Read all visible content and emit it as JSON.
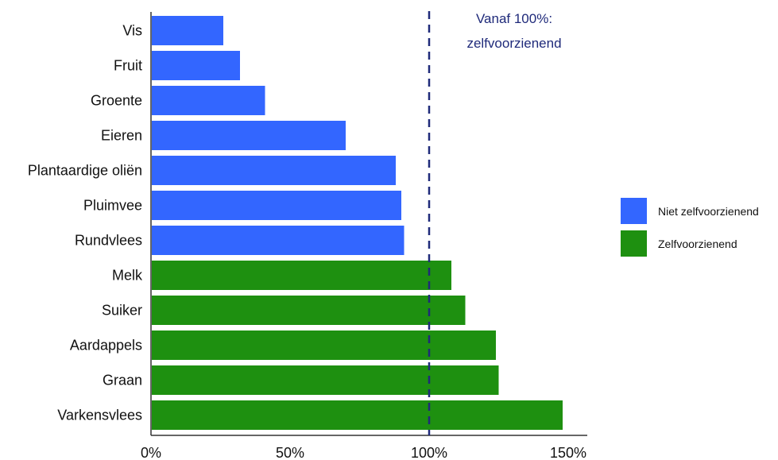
{
  "chart_data": {
    "type": "bar",
    "orientation": "horizontal",
    "categories": [
      "Vis",
      "Fruit",
      "Groente",
      "Eieren",
      "Plantaardige oliën",
      "Pluimvee",
      "Rundvlees",
      "Melk",
      "Suiker",
      "Aardappels",
      "Graan",
      "Varkensvlees"
    ],
    "values": [
      26,
      32,
      41,
      70,
      88,
      90,
      91,
      108,
      113,
      124,
      125,
      148
    ],
    "groups": [
      "Niet zelfvoorzienend",
      "Niet zelfvoorzienend",
      "Niet zelfvoorzienend",
      "Niet zelfvoorzienend",
      "Niet zelfvoorzienend",
      "Niet zelfvoorzienend",
      "Niet zelfvoorzienend",
      "Zelfvoorzienend",
      "Zelfvoorzienend",
      "Zelfvoorzienend",
      "Zelfvoorzienend",
      "Zelfvoorzienend"
    ],
    "xlim": [
      0,
      156
    ],
    "xticks": [
      0,
      50,
      100,
      150
    ],
    "xtick_labels": [
      "0%",
      "50%",
      "100%",
      "150%"
    ],
    "reference_line": {
      "value": 100,
      "style": "dashed",
      "color": "#1f2a7a"
    },
    "annotation": {
      "line1": "Vanaf 100%:",
      "line2": "zelfvoorzienend"
    },
    "legend": {
      "placement": "right",
      "entries": [
        {
          "name": "Niet zelfvoorzienend",
          "color": "#3366ff"
        },
        {
          "name": "Zelfvoorzienend",
          "color": "#1e9010"
        }
      ]
    },
    "colors": {
      "niet": "#3366ff",
      "zelf": "#1e9010",
      "axis": "#333333",
      "reference": "#1f2a7a"
    },
    "grid": false
  }
}
